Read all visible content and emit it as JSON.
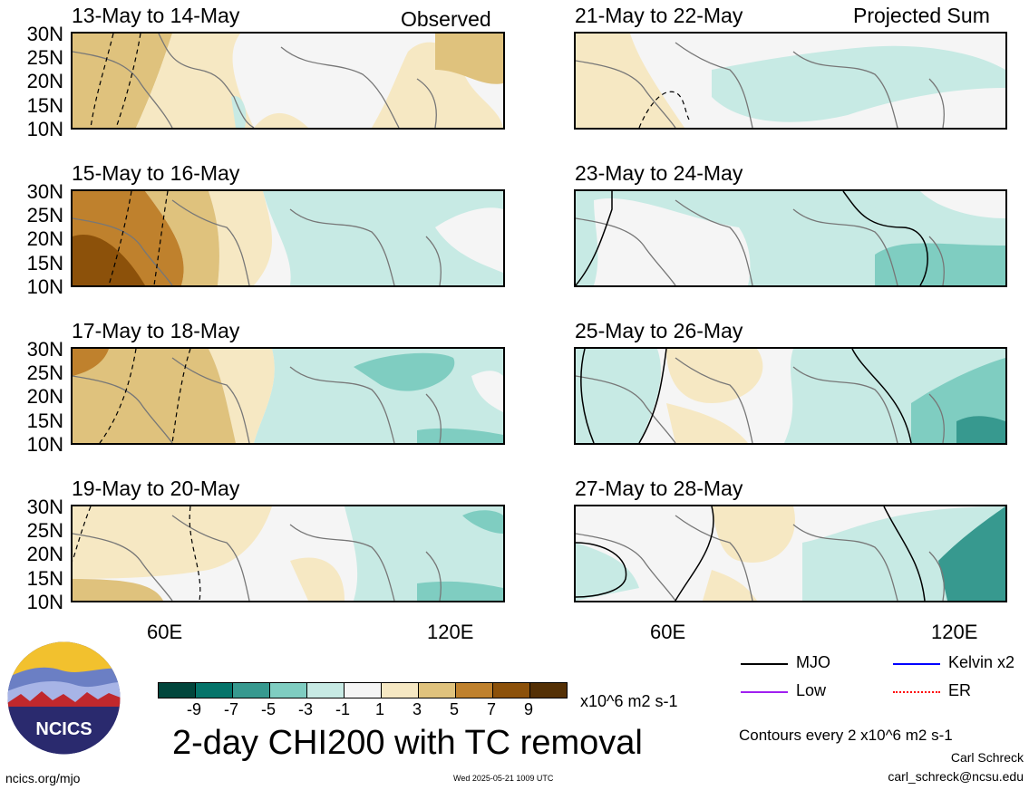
{
  "observed_label": "Observed",
  "projected_label": "Projected Sum",
  "panels_left": [
    {
      "title": "13-May to 14-May"
    },
    {
      "title": "15-May to 16-May"
    },
    {
      "title": "17-May to 18-May"
    },
    {
      "title": "19-May to 20-May"
    }
  ],
  "panels_right": [
    {
      "title": "21-May to 22-May"
    },
    {
      "title": "23-May to 24-May"
    },
    {
      "title": "25-May to 26-May"
    },
    {
      "title": "27-May to 28-May"
    }
  ],
  "lat_labels": [
    "30N",
    "25N",
    "20N",
    "15N",
    "10N"
  ],
  "lon_labels": [
    "60E",
    "120E"
  ],
  "colorbar": {
    "ticks": [
      "-9",
      "-7",
      "-5",
      "-3",
      "-1",
      "1",
      "3",
      "5",
      "7",
      "9"
    ],
    "colors": [
      "#01463c",
      "#05746a",
      "#37998f",
      "#7fcdc1",
      "#c7eae4",
      "#f5f5f5",
      "#f6e8c3",
      "#dfc27d",
      "#bf812d",
      "#8c510a",
      "#543005"
    ],
    "units": "x10^6 m2 s-1"
  },
  "main_title": "2-day CHI200 with TC removal",
  "legend": [
    {
      "label": "MJO",
      "color": "#000000",
      "style": "solid"
    },
    {
      "label": "Kelvin x2",
      "color": "#0000ff",
      "style": "solid"
    },
    {
      "label": "Low",
      "color": "#a020f0",
      "style": "solid"
    },
    {
      "label": "ER",
      "color": "#ff0000",
      "style": "dotted"
    }
  ],
  "contour_note": "Contours every 2 x10^6 m2 s-1",
  "author": "Carl Schreck",
  "email": "carl_schreck@ncsu.edu",
  "website": "ncics.org/mjo",
  "timestamp": "Wed 2025-05-21 1009 UTC",
  "logo_text": "NCICS"
}
